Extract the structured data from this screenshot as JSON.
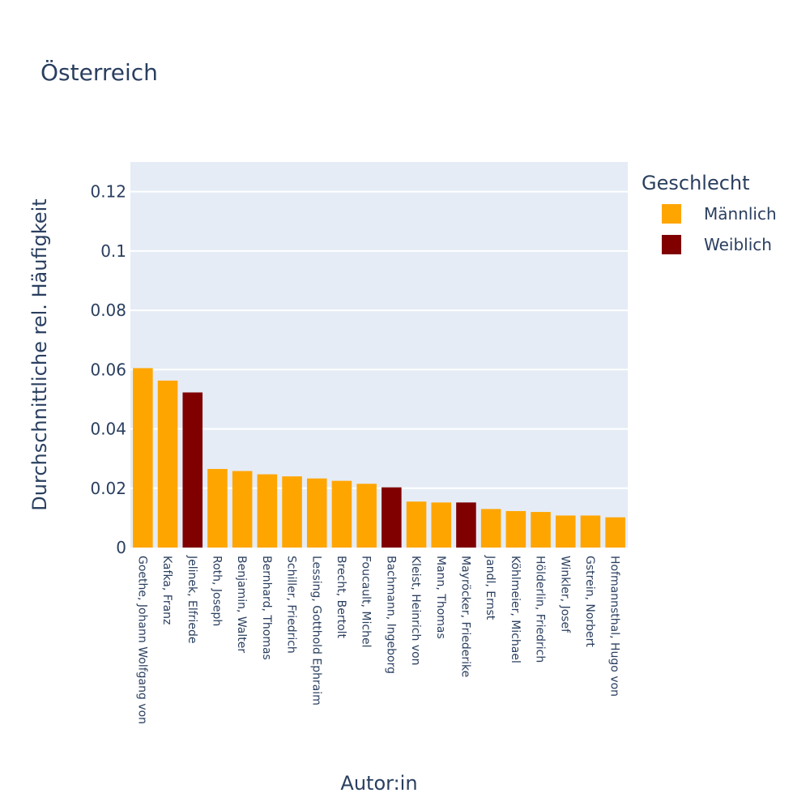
{
  "chart_data": {
    "type": "bar",
    "title": "Österreich",
    "xlabel": "Autor:in",
    "ylabel": "Durchschnittliche rel. Häufigkeit",
    "ylim": [
      0,
      0.13
    ],
    "yticks": [
      0,
      0.02,
      0.04,
      0.06,
      0.08,
      0.1,
      0.12
    ],
    "ytick_labels": [
      "0",
      "0.02",
      "0.04",
      "0.06",
      "0.08",
      "0.1",
      "0.12"
    ],
    "grid": true,
    "legend": {
      "title": "Geschlecht",
      "placement": "right",
      "entries": [
        {
          "name": "Männlich",
          "color": "#FFA500"
        },
        {
          "name": "Weiblich",
          "color": "#800000"
        }
      ]
    },
    "categories": [
      "Goethe, Johann Wolfgang von",
      "Kafka, Franz",
      "Jelinek, Elfriede",
      "Roth, Joseph",
      "Benjamin, Walter",
      "Bernhard, Thomas",
      "Schiller, Friedrich",
      "Lessing, Gotthold Ephraim",
      "Brecht, Bertolt",
      "Foucault, Michel",
      "Bachmann, Ingeborg",
      "Kleist, Heinrich von",
      "Mann, Thomas",
      "Mayröcker, Friederike",
      "Jandl, Ernst",
      "Köhlmeier, Michael",
      "Hölderlin, Friedrich",
      "Winkler, Josef",
      "Gstrein, Norbert",
      "Hofmannsthal, Hugo von"
    ],
    "values": [
      0.0605,
      0.0563,
      0.0523,
      0.0265,
      0.0258,
      0.0247,
      0.024,
      0.0233,
      0.0225,
      0.0215,
      0.0203,
      0.0155,
      0.0152,
      0.0152,
      0.013,
      0.0123,
      0.012,
      0.0108,
      0.0108,
      0.0102
    ],
    "groups": [
      "Männlich",
      "Männlich",
      "Weiblich",
      "Männlich",
      "Männlich",
      "Männlich",
      "Männlich",
      "Männlich",
      "Männlich",
      "Männlich",
      "Weiblich",
      "Männlich",
      "Männlich",
      "Weiblich",
      "Männlich",
      "Männlich",
      "Männlich",
      "Männlich",
      "Männlich",
      "Männlich"
    ]
  },
  "colors": {
    "plot_background": "#E5ECF6",
    "gridline": "#FFFFFF",
    "text": "#2a3f5f"
  }
}
